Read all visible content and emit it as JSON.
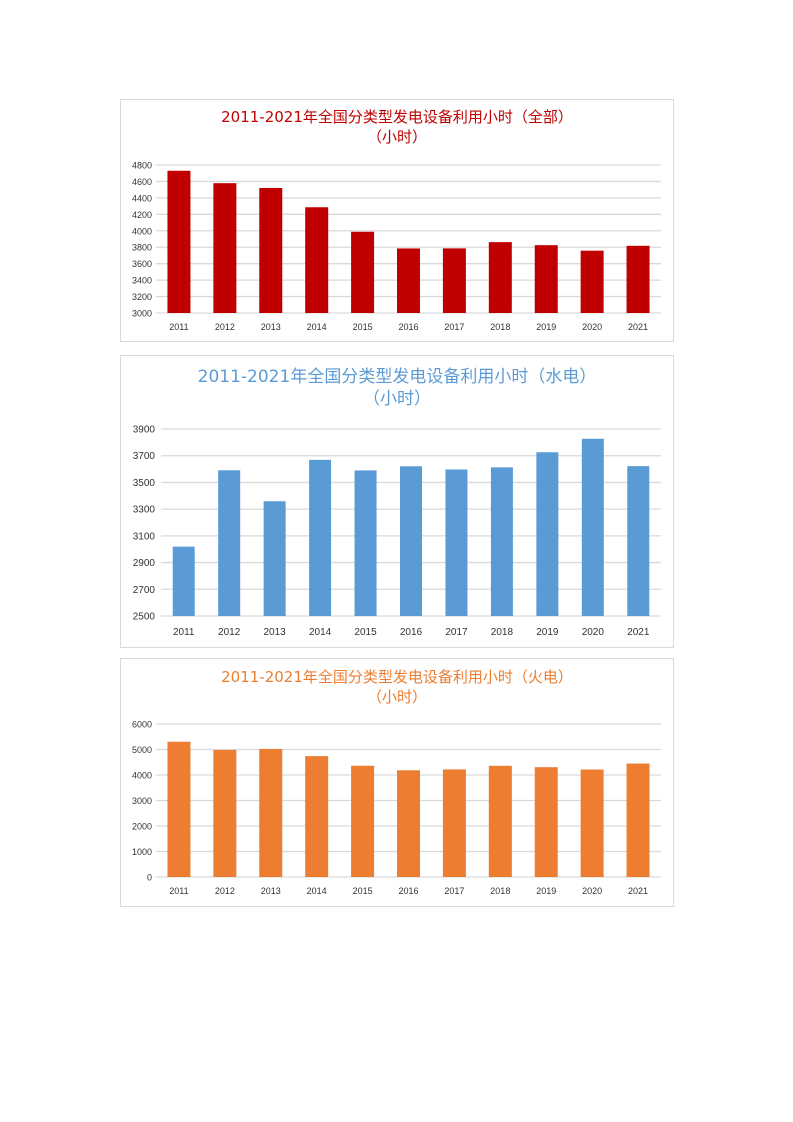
{
  "chart_data": [
    {
      "type": "bar",
      "title": "2011-2021年全国分类型发电设备利用小时（全部）",
      "subtitle": "（小时）",
      "color": "#c00000",
      "categories": [
        "2011",
        "2012",
        "2013",
        "2014",
        "2015",
        "2016",
        "2017",
        "2018",
        "2019",
        "2020",
        "2021"
      ],
      "values": [
        4730,
        4579,
        4521,
        4286,
        3988,
        3785,
        3786,
        3862,
        3825,
        3758,
        3817
      ],
      "ylim": [
        3000,
        4800
      ],
      "yticks": [
        3000,
        3200,
        3400,
        3600,
        3800,
        4000,
        4200,
        4400,
        4600,
        4800
      ],
      "grid": true
    },
    {
      "type": "bar",
      "title": "2011-2021年全国分类型发电设备利用小时（水电）",
      "subtitle": "（小时）",
      "color": "#5b9bd5",
      "categories": [
        "2011",
        "2012",
        "2013",
        "2014",
        "2015",
        "2016",
        "2017",
        "2018",
        "2019",
        "2020",
        "2021"
      ],
      "values": [
        3019,
        3591,
        3359,
        3669,
        3590,
        3621,
        3597,
        3613,
        3726,
        3827,
        3622
      ],
      "ylim": [
        2500,
        3900
      ],
      "yticks": [
        2500,
        2700,
        2900,
        3100,
        3300,
        3500,
        3700,
        3900
      ],
      "grid": true
    },
    {
      "type": "bar",
      "title": "2011-2021年全国分类型发电设备利用小时（火电）",
      "subtitle": "（小时）",
      "color": "#ed7d31",
      "categories": [
        "2011",
        "2012",
        "2013",
        "2014",
        "2015",
        "2016",
        "2017",
        "2018",
        "2019",
        "2020",
        "2021"
      ],
      "values": [
        5305,
        4982,
        5021,
        4739,
        4364,
        4186,
        4219,
        4361,
        4307,
        4216,
        4448
      ],
      "ylim": [
        0,
        6000
      ],
      "yticks": [
        0,
        1000,
        2000,
        3000,
        4000,
        5000,
        6000
      ],
      "grid": true
    }
  ]
}
